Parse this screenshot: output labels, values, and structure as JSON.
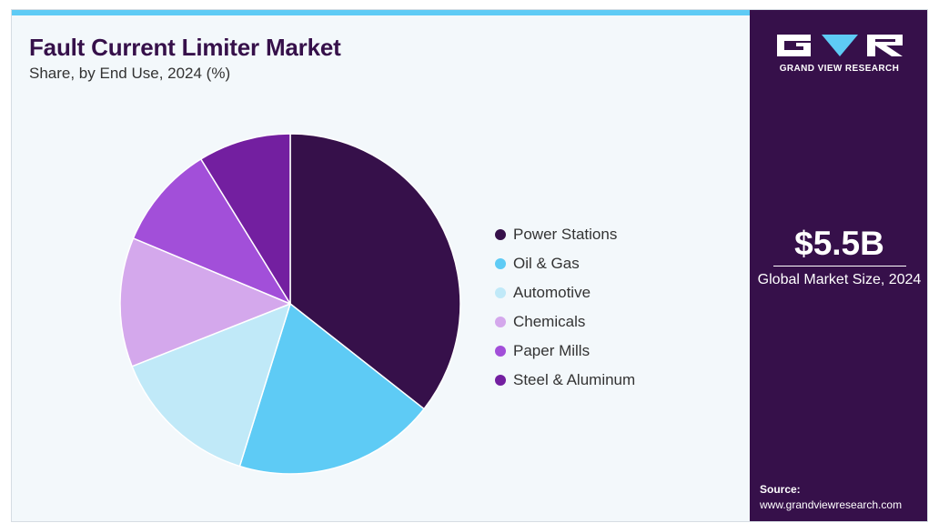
{
  "header": {
    "title": "Fault Current Limiter Market",
    "subtitle": "Share, by End Use, 2024 (%)"
  },
  "chart_data": {
    "type": "pie",
    "categories": [
      "Power Stations",
      "Oil & Gas",
      "Automotive",
      "Chemicals",
      "Paper Mills",
      "Steel & Aluminum"
    ],
    "values": [
      35.6,
      19.2,
      14.2,
      12.3,
      9.9,
      8.8
    ],
    "colors": [
      "#36104a",
      "#5ecbf5",
      "#c0e9f8",
      "#d4a8ec",
      "#a24fd9",
      "#731fa0"
    ],
    "legend_position": "right",
    "start_angle_deg": 0,
    "direction": "clockwise"
  },
  "sidebar": {
    "logo_text": "GRAND VIEW RESEARCH",
    "market_size": "$5.5B",
    "market_size_label": "Global Market Size, 2024",
    "source_label": "Source:",
    "source_url": "www.grandviewresearch.com",
    "bg_color": "#36104a"
  }
}
